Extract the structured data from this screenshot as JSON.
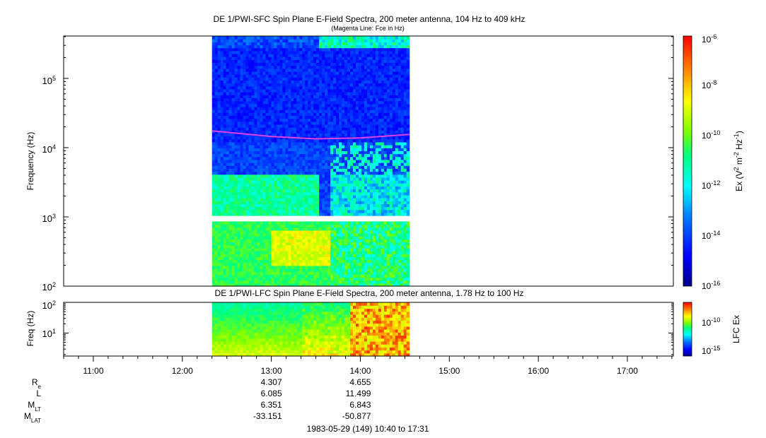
{
  "chart_data": [
    {
      "type": "heatmap",
      "title": "DE 1/PWI-SFC  Spin Plane E-Field Spectra, 200 meter antenna, 104 Hz to 409 kHz",
      "subtitle": "(Magenta Line: Fce in Hz)",
      "ylabel": "Frequency (Hz)",
      "yscale": "log",
      "ylim": [
        100,
        409000
      ],
      "ytick_labels": [
        "10^2",
        "10^3",
        "10^4",
        "10^5"
      ],
      "xlim": [
        "10:40",
        "17:31"
      ],
      "data_coverage": [
        "12:20",
        "14:33"
      ],
      "colorbar": {
        "label": "Ex (V^2 m^-2 Hz^-1)",
        "scale": "log",
        "range": [
          1e-16,
          1e-06
        ],
        "tick_labels": [
          "10^-6",
          "10^-8",
          "10^-10",
          "10^-12",
          "10^-14",
          "10^-16"
        ]
      },
      "fce_line": {
        "color": "#e040e0",
        "x": [
          "12:20",
          "13:00",
          "13:30",
          "14:00",
          "14:33"
        ],
        "y": [
          17500,
          14500,
          13400,
          13800,
          15500
        ]
      }
    },
    {
      "type": "heatmap",
      "title": "DE 1/PWI-LFC  Spin Plane E-Field Spectra, 200 meter antenna, 1.78 Hz to 100 Hz",
      "ylabel": "Freq (Hz)",
      "yscale": "log",
      "ylim": [
        1.78,
        100
      ],
      "ytick_labels": [
        "10^1",
        "10^2"
      ],
      "xlim": [
        "10:40",
        "17:31"
      ],
      "data_coverage": [
        "12:20",
        "14:33"
      ],
      "colorbar": {
        "label": "LFC Ex",
        "scale": "log",
        "range": [
          1e-17,
          1e-07
        ],
        "tick_labels": [
          "10^-10",
          "10^-15"
        ]
      }
    }
  ],
  "x_axis": {
    "ticks": [
      "11:00",
      "12:00",
      "13:00",
      "14:00",
      "15:00",
      "16:00",
      "17:00"
    ],
    "footer": "1983-05-29 (149) 10:40 to 17:31"
  },
  "ephemeris": {
    "labels": [
      {
        "main": "R",
        "sub": "e"
      },
      {
        "main": "L",
        "sub": ""
      },
      {
        "main": "M",
        "sub": "LT"
      },
      {
        "main": "M",
        "sub": "LAT"
      }
    ],
    "times": [
      "13:00",
      "14:00"
    ],
    "rows": [
      [
        "4.307",
        "4.655"
      ],
      [
        "6.085",
        "11.499"
      ],
      [
        "6.351",
        "6.843"
      ],
      [
        "-33.151",
        "-50.877"
      ]
    ]
  },
  "colors": {
    "fce_line": "#e040e0",
    "colormap": [
      "#00008c",
      "#0000ff",
      "#0080ff",
      "#00ffff",
      "#00ff80",
      "#80ff00",
      "#ffff00",
      "#ff8000",
      "#ff0000"
    ]
  }
}
